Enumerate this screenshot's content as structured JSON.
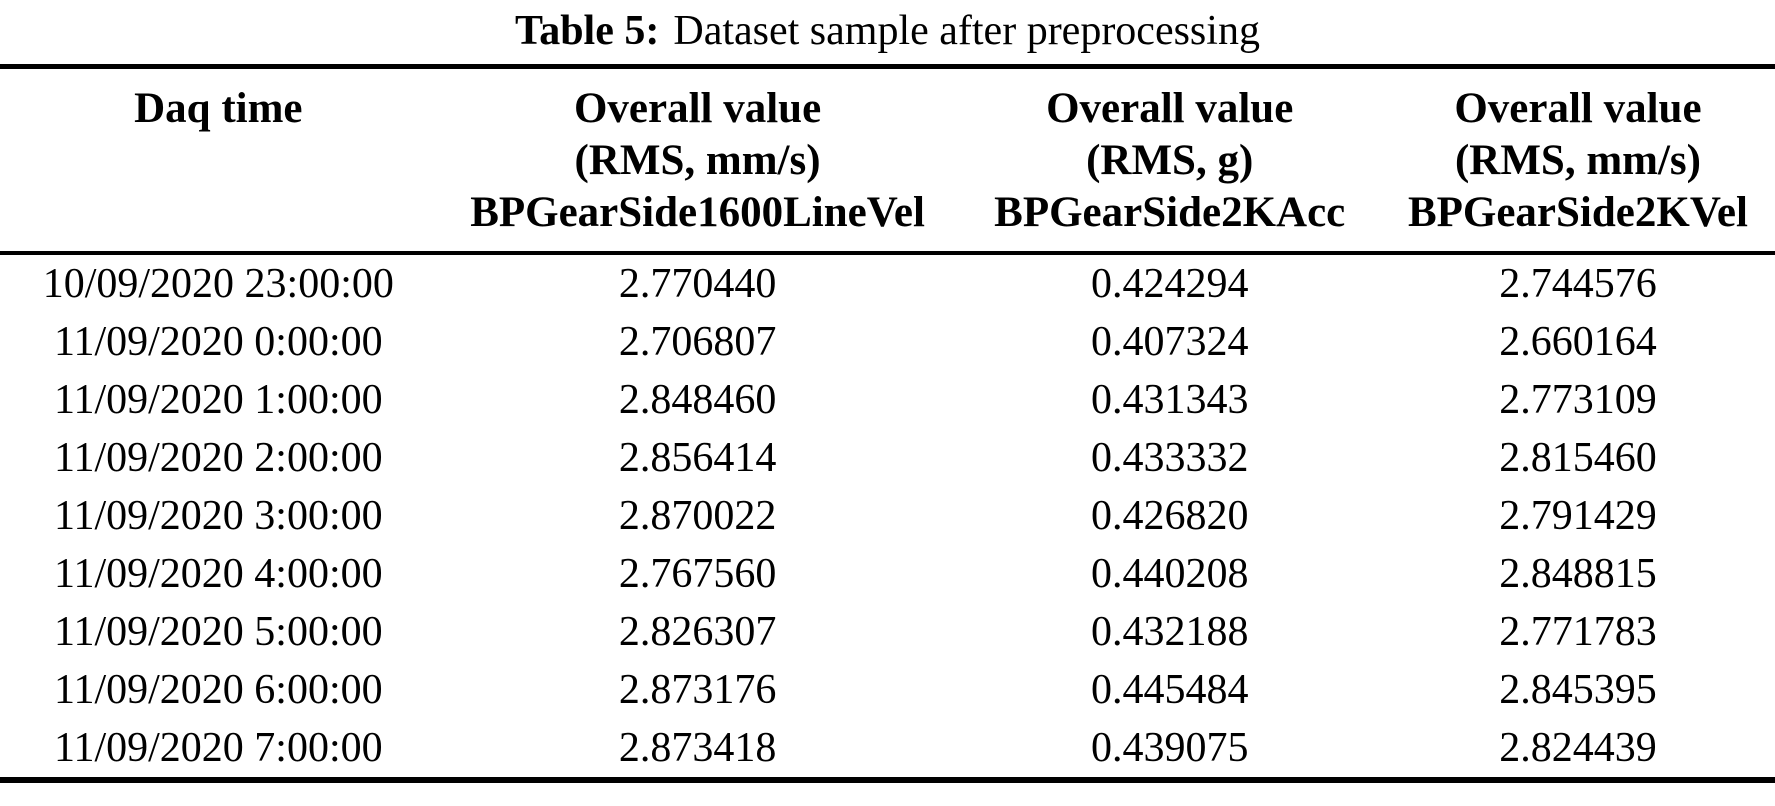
{
  "colors": {
    "text": "#000000",
    "background": "#ffffff",
    "rule": "#000000"
  },
  "caption": {
    "label": "Table 5:",
    "text": "Dataset sample after preprocessing"
  },
  "table": {
    "columns": [
      {
        "lines": [
          "Daq time"
        ]
      },
      {
        "lines": [
          "Overall value",
          "(RMS, mm/s)",
          "BPGearSide1600LineVel"
        ]
      },
      {
        "lines": [
          "Overall value",
          "(RMS, g)",
          "BPGearSide2KAcc"
        ]
      },
      {
        "lines": [
          "Overall value",
          "(RMS, mm/s)",
          "BPGearSide2KVel"
        ]
      }
    ],
    "rows": [
      [
        "10/09/2020 23:00:00",
        "2.770440",
        "0.424294",
        "2.744576"
      ],
      [
        "11/09/2020 0:00:00",
        "2.706807",
        "0.407324",
        "2.660164"
      ],
      [
        "11/09/2020 1:00:00",
        "2.848460",
        "0.431343",
        "2.773109"
      ],
      [
        "11/09/2020 2:00:00",
        "2.856414",
        "0.433332",
        "2.815460"
      ],
      [
        "11/09/2020 3:00:00",
        "2.870022",
        "0.426820",
        "2.791429"
      ],
      [
        "11/09/2020 4:00:00",
        "2.767560",
        "0.440208",
        "2.848815"
      ],
      [
        "11/09/2020 5:00:00",
        "2.826307",
        "0.432188",
        "2.771783"
      ],
      [
        "11/09/2020 6:00:00",
        "2.873176",
        "0.445484",
        "2.845395"
      ],
      [
        "11/09/2020 7:00:00",
        "2.873418",
        "0.439075",
        "2.824439"
      ]
    ]
  }
}
